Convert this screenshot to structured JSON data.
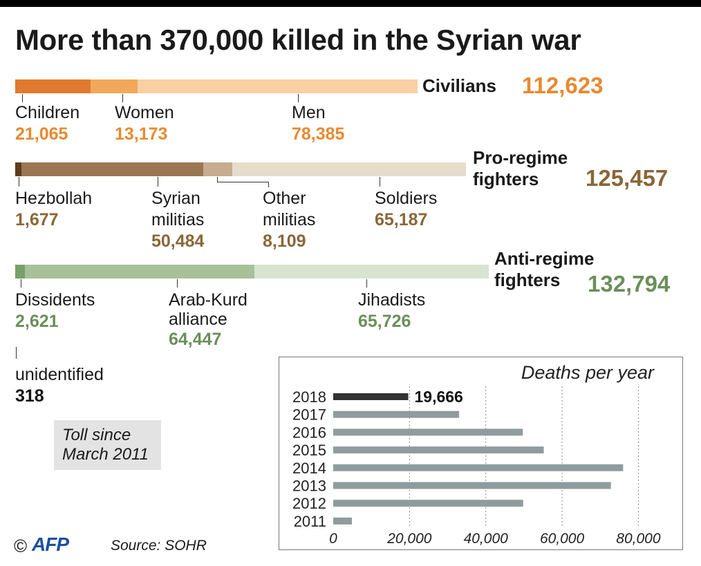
{
  "title": "More than 370,000 killed in the Syrian war",
  "colors": {
    "civilians": [
      "#e07a2e",
      "#f2a859",
      "#f9d0a4"
    ],
    "pro_regime": [
      "#5c3d1e",
      "#9a7752",
      "#c7ad8f",
      "#e6dccc"
    ],
    "anti_regime": [
      "#7a9e68",
      "#a7c199",
      "#d8e4cf"
    ],
    "bar_2018": "#333333",
    "bar_other": "#8f9c9e"
  },
  "groups": {
    "civilians": {
      "label": "Civilians",
      "total": "112,623",
      "items": [
        {
          "label": "Children",
          "value": "21,065"
        },
        {
          "label": "Women",
          "value": "13,173"
        },
        {
          "label": "Men",
          "value": "78,385"
        }
      ]
    },
    "pro_regime": {
      "label_line1": "Pro-regime",
      "label_line2": "fighters",
      "total": "125,457",
      "items": [
        {
          "label": "Hezbollah",
          "value": "1,677"
        },
        {
          "label_line1": "Syrian",
          "label_line2": "militias",
          "value": "50,484"
        },
        {
          "label_line1": "Other",
          "label_line2": "militias",
          "value": "8,109"
        },
        {
          "label": "Soldiers",
          "value": "65,187"
        }
      ]
    },
    "anti_regime": {
      "label_line1": "Anti-regime",
      "label_line2": "fighters",
      "total": "132,794",
      "items": [
        {
          "label": "Dissidents",
          "value": "2,621"
        },
        {
          "label_line1": "Arab-Kurd",
          "label_line2": "alliance",
          "value": "64,447"
        },
        {
          "label": "Jihadists",
          "value": "65,726"
        }
      ]
    },
    "unidentified": {
      "label": "unidentified",
      "value": "318"
    }
  },
  "note": {
    "line1": "Toll since",
    "line2": "March 2011"
  },
  "footer": {
    "copyright": "©",
    "logo": "AFP",
    "source": "Source: SOHR"
  },
  "chart_data": {
    "type": "bar",
    "orientation": "horizontal",
    "title": "Deaths per year",
    "categories": [
      "2018",
      "2017",
      "2016",
      "2015",
      "2014",
      "2013",
      "2012",
      "2011"
    ],
    "values": [
      19666,
      33000,
      49700,
      55200,
      76000,
      72800,
      49800,
      4900
    ],
    "highlight_label": "19,666",
    "xlim": [
      0,
      85000
    ],
    "xticks": [
      0,
      20000,
      40000,
      60000,
      80000
    ],
    "xtick_labels": [
      "0",
      "20,000",
      "40,000",
      "60,000",
      "80,000"
    ],
    "grid": "dotted vertical"
  }
}
